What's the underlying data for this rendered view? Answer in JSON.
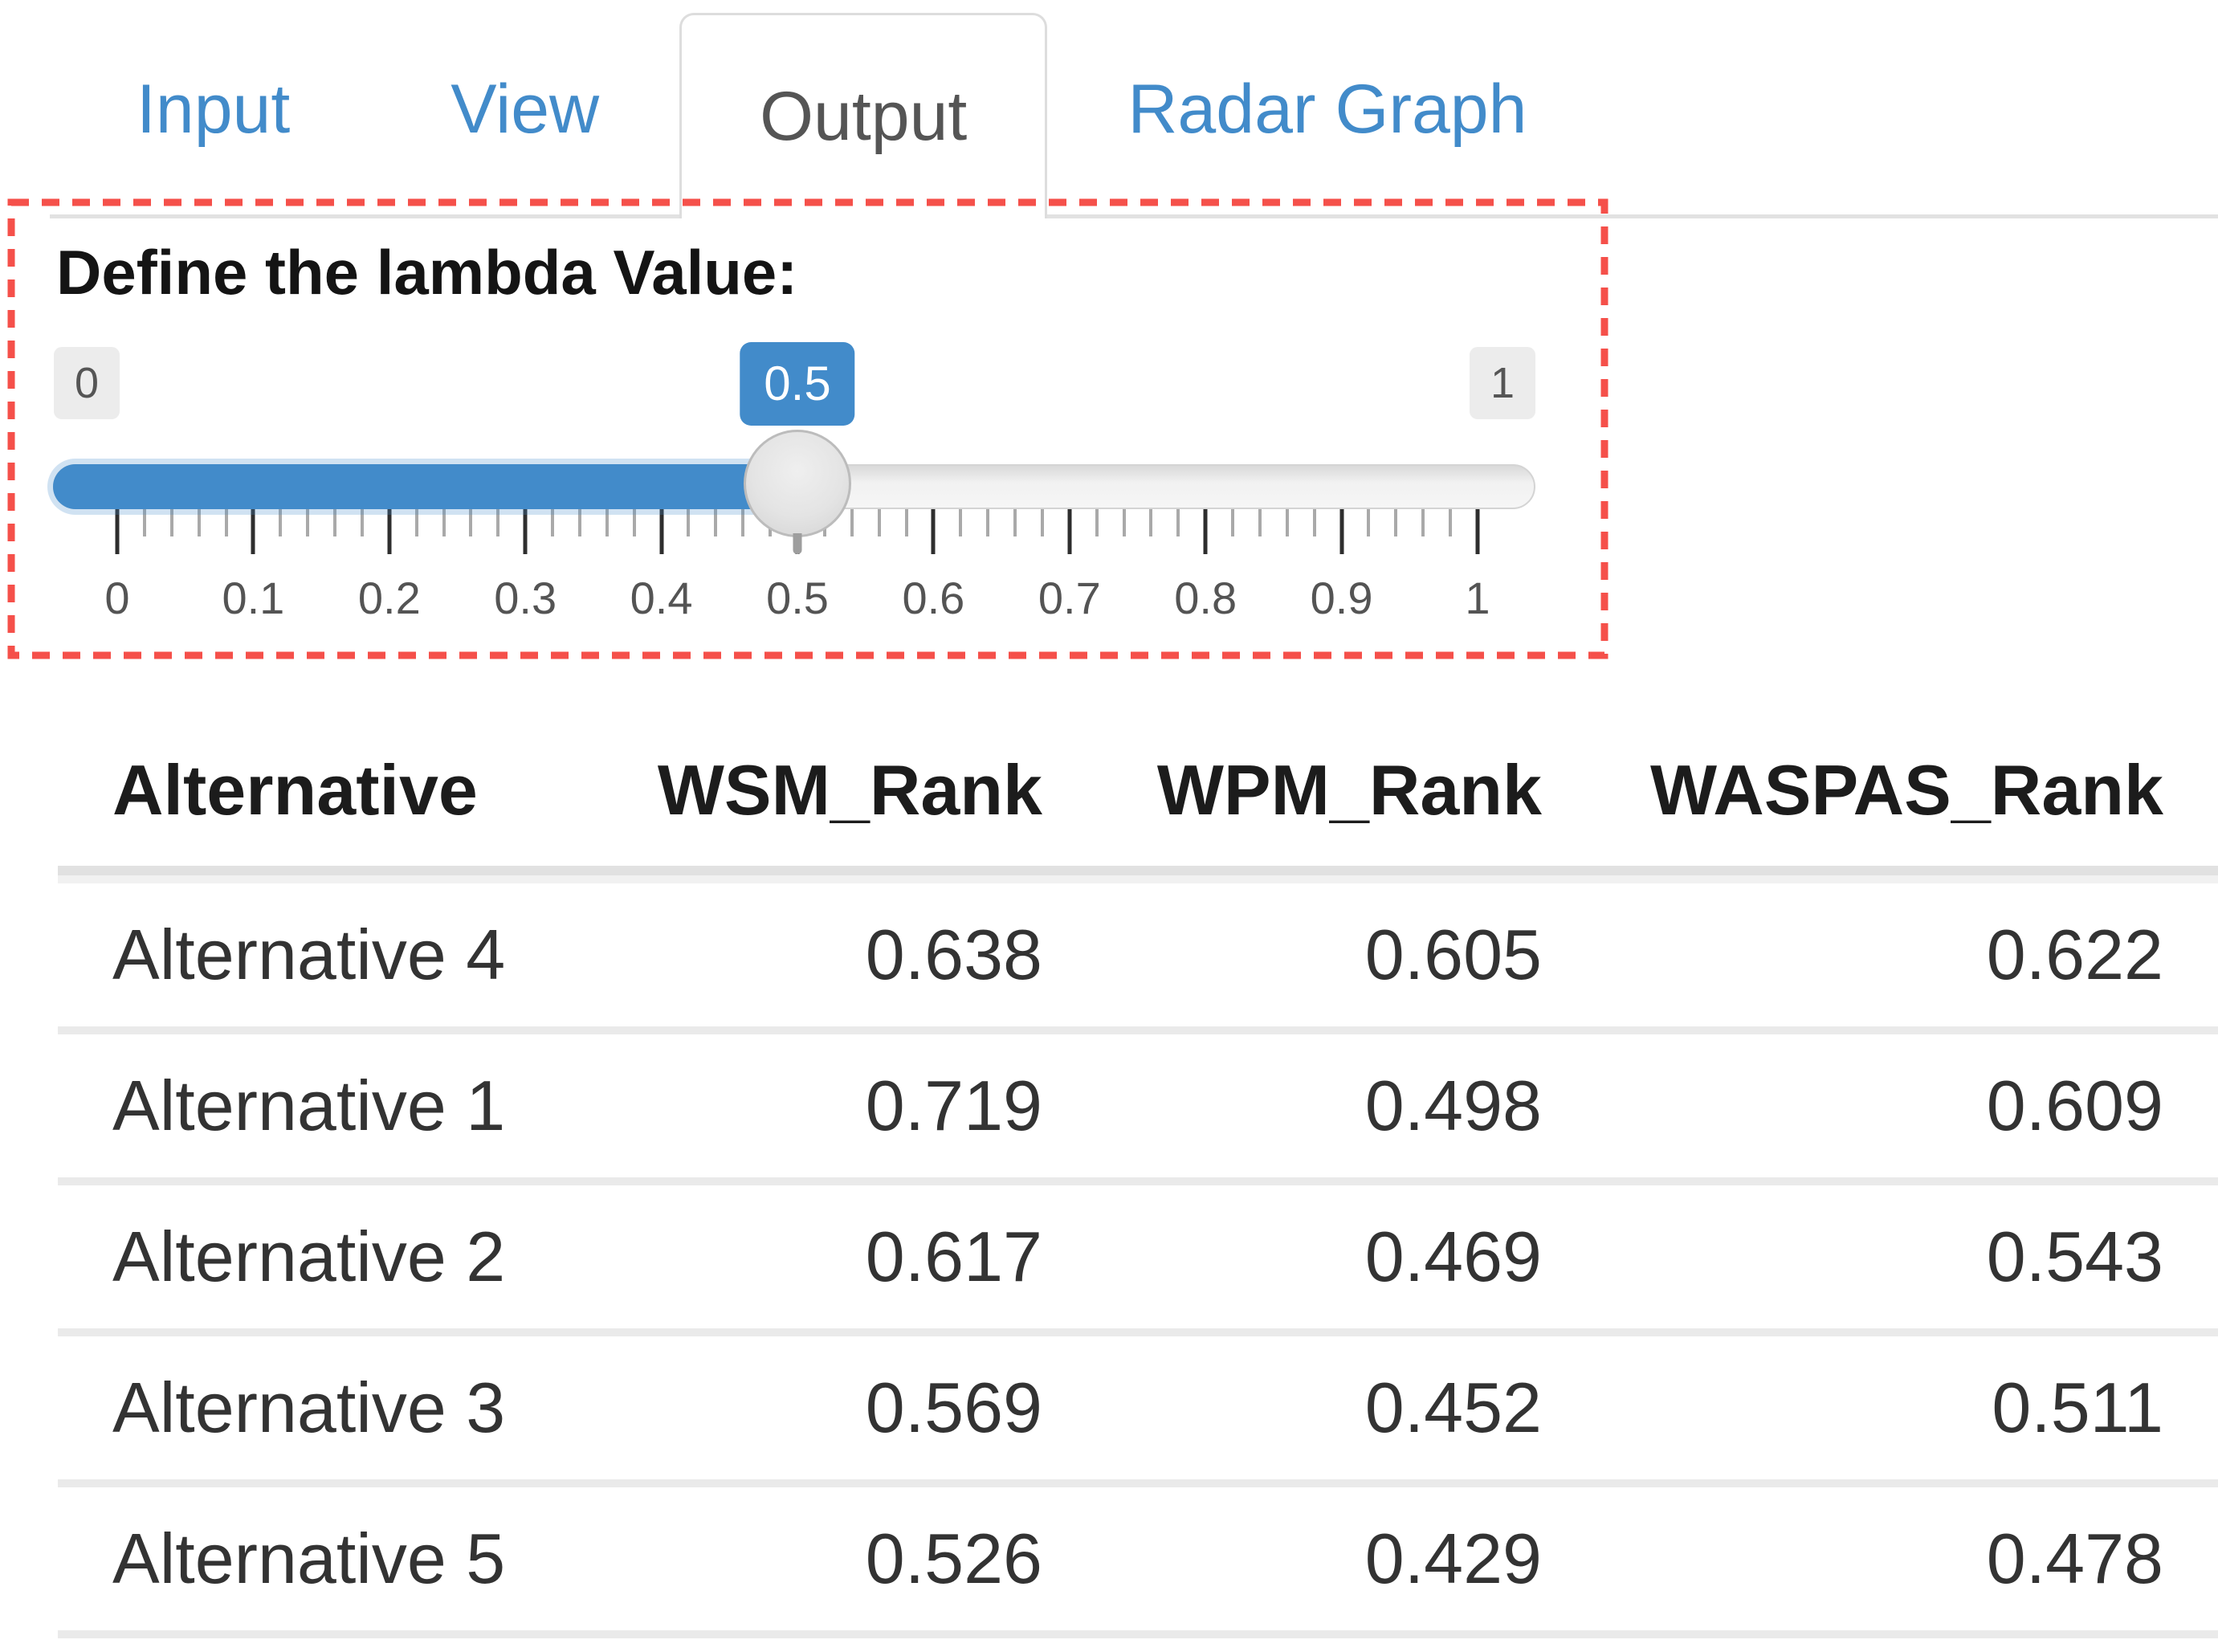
{
  "tabs": [
    {
      "label": "Input",
      "active": false
    },
    {
      "label": "View",
      "active": false
    },
    {
      "label": "Output",
      "active": true
    },
    {
      "label": "Radar Graph",
      "active": false
    }
  ],
  "slider": {
    "label": "Define the lambda Value:",
    "min_label": "0",
    "max_label": "1",
    "value_label": "0.5",
    "value": 0.5,
    "min": 0,
    "max": 1,
    "grid_labels": [
      "0",
      "0.1",
      "0.2",
      "0.3",
      "0.4",
      "0.5",
      "0.6",
      "0.7",
      "0.8",
      "0.9",
      "1"
    ]
  },
  "table": {
    "headers": [
      "Alternative",
      "WSM_Rank",
      "WPM_Rank",
      "WASPAS_Rank"
    ],
    "rows": [
      [
        "Alternative 4",
        "0.638",
        "0.605",
        "0.622"
      ],
      [
        "Alternative 1",
        "0.719",
        "0.498",
        "0.609"
      ],
      [
        "Alternative 2",
        "0.617",
        "0.469",
        "0.543"
      ],
      [
        "Alternative 3",
        "0.569",
        "0.452",
        "0.511"
      ],
      [
        "Alternative 5",
        "0.526",
        "0.429",
        "0.478"
      ]
    ]
  },
  "colors": {
    "accent_blue": "#428bca",
    "tab_link_blue": "#428bca",
    "active_tab_text": "#555555",
    "annotation_red": "#f5504a",
    "track_gray": "#ededed"
  }
}
